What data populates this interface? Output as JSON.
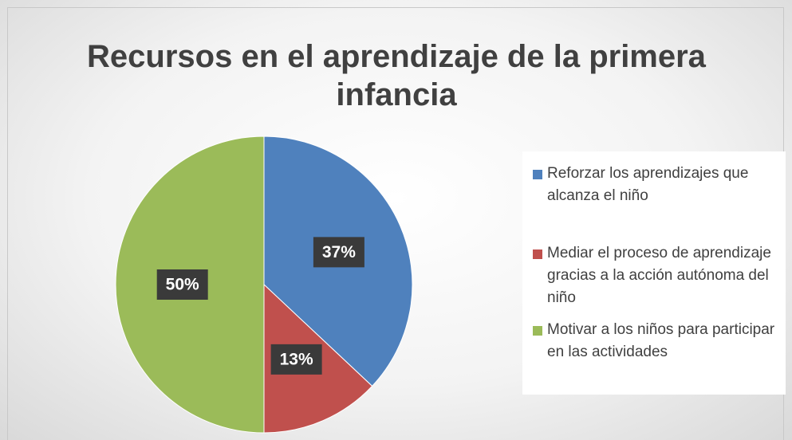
{
  "chart_data": {
    "type": "pie",
    "title": "Recursos en el aprendizaje de la primera infancia",
    "categories": [
      "Reforzar los aprendizajes que alcanza el niño",
      "Mediar el proceso de aprendizaje gracias a la acción autónoma del niño",
      "Motivar a los niños para participar en las actividades"
    ],
    "values": [
      37,
      13,
      50
    ],
    "value_labels": [
      "37%",
      "13%",
      "50%"
    ],
    "colors": [
      "#4f81bd",
      "#c0504d",
      "#9bbb59"
    ],
    "legend": "right"
  }
}
